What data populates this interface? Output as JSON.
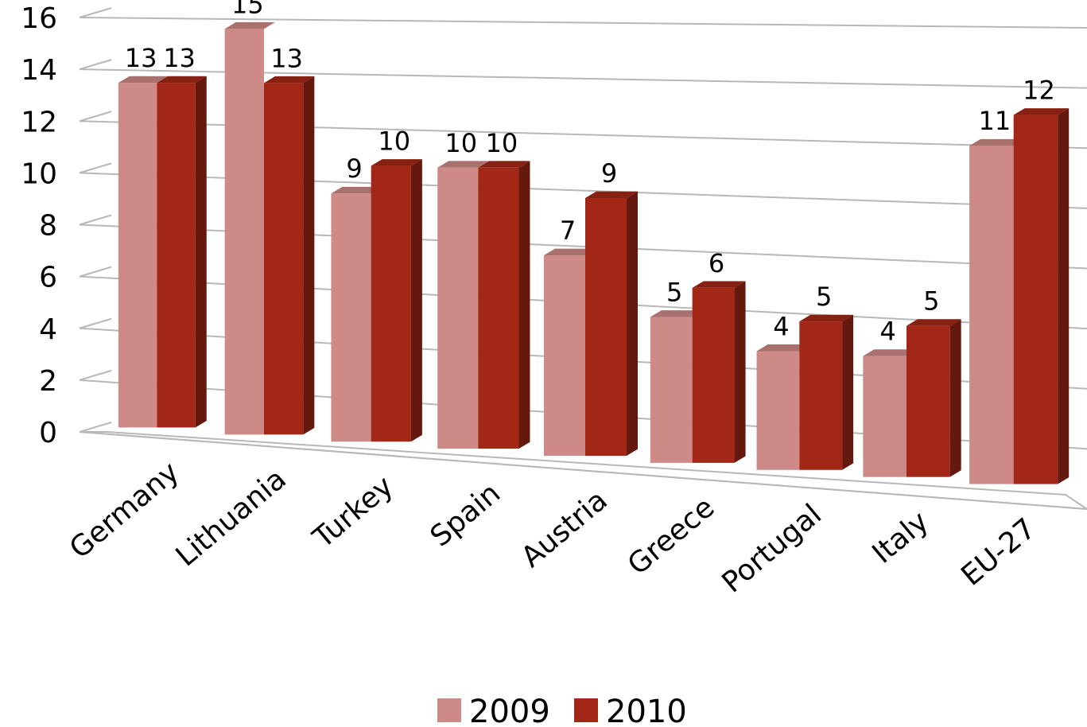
{
  "chart_data": {
    "type": "bar",
    "categories": [
      "Germany",
      "Lithuania",
      "Turkey",
      "Spain",
      "Austria",
      "Greece",
      "Portugal",
      "Italy",
      "EU-27"
    ],
    "series": [
      {
        "name": "2009",
        "values": [
          13,
          15,
          9,
          10,
          7,
          5,
          4,
          4,
          11
        ],
        "labels": [
          "13",
          "15",
          "9",
          "10",
          "7",
          "5",
          "4",
          "4",
          "11"
        ],
        "color": "#cd8a86"
      },
      {
        "name": "2010",
        "values": [
          13,
          13,
          10,
          10,
          9,
          6,
          5,
          5,
          12
        ],
        "labels": [
          "13",
          "13",
          "10",
          "10",
          "9",
          "6",
          "5",
          "5",
          "12"
        ],
        "color": "#a32716"
      }
    ],
    "yticks": [
      "0",
      "2",
      "4",
      "6",
      "8",
      "10",
      "12",
      "14",
      "16"
    ],
    "ylim": [
      0,
      16
    ],
    "grid": true,
    "legend": "bottom"
  }
}
